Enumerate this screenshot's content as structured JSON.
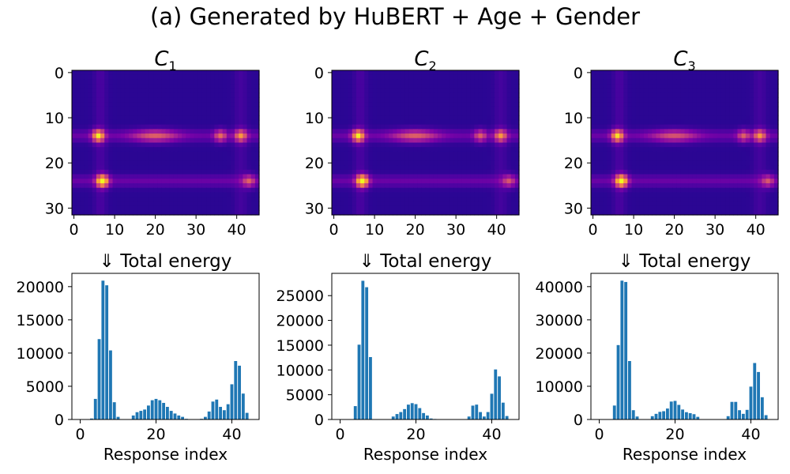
{
  "figure": {
    "title": "(a) Generated by HuBERT + Age + Gender"
  },
  "chart_data": [
    {
      "type": "heatmap",
      "title": "C",
      "title_subscript": "1",
      "colormap": "plasma",
      "xticks": [
        "0",
        "10",
        "20",
        "30",
        "40"
      ],
      "yticks": [
        "0",
        "10",
        "20",
        "30"
      ],
      "xlim": [
        -0.5,
        45.5
      ],
      "ylim": [
        31.5,
        -0.5
      ],
      "bright_rows": [
        14,
        24
      ],
      "hotspots": [
        {
          "x": 6,
          "y": 14,
          "intensity": 0.85
        },
        {
          "x": 7,
          "y": 24,
          "intensity": 1.0
        },
        {
          "x": 20,
          "y": 14,
          "intensity": 0.45
        },
        {
          "x": 36,
          "y": 14,
          "intensity": 0.5
        },
        {
          "x": 41,
          "y": 14,
          "intensity": 0.6
        },
        {
          "x": 43,
          "y": 24,
          "intensity": 0.45
        }
      ]
    },
    {
      "type": "heatmap",
      "title": "C",
      "title_subscript": "2",
      "colormap": "plasma",
      "xticks": [
        "0",
        "10",
        "20",
        "30",
        "40"
      ],
      "yticks": [
        "0",
        "10",
        "20",
        "30"
      ],
      "xlim": [
        -0.5,
        45.5
      ],
      "ylim": [
        31.5,
        -0.5
      ],
      "bright_rows": [
        14,
        24
      ],
      "hotspots": [
        {
          "x": 6,
          "y": 14,
          "intensity": 0.85
        },
        {
          "x": 7,
          "y": 24,
          "intensity": 1.0
        },
        {
          "x": 20,
          "y": 14,
          "intensity": 0.45
        },
        {
          "x": 36,
          "y": 14,
          "intensity": 0.45
        },
        {
          "x": 41,
          "y": 14,
          "intensity": 0.6
        },
        {
          "x": 43,
          "y": 24,
          "intensity": 0.4
        }
      ]
    },
    {
      "type": "heatmap",
      "title": "C",
      "title_subscript": "3",
      "colormap": "plasma",
      "xticks": [
        "0",
        "10",
        "20",
        "30",
        "40"
      ],
      "yticks": [
        "0",
        "10",
        "20",
        "30"
      ],
      "xlim": [
        -0.5,
        45.5
      ],
      "ylim": [
        31.5,
        -0.5
      ],
      "bright_rows": [
        14,
        24
      ],
      "hotspots": [
        {
          "x": 6,
          "y": 14,
          "intensity": 0.8
        },
        {
          "x": 7,
          "y": 24,
          "intensity": 1.0
        },
        {
          "x": 20,
          "y": 14,
          "intensity": 0.4
        },
        {
          "x": 37,
          "y": 14,
          "intensity": 0.45
        },
        {
          "x": 41,
          "y": 14,
          "intensity": 0.6
        },
        {
          "x": 43,
          "y": 24,
          "intensity": 0.4
        }
      ]
    },
    {
      "type": "bar",
      "title": "⇓  Total energy",
      "xlabel": "Response index",
      "ylabel": "",
      "color": "#1f77b4",
      "xlim": [
        -2.2,
        47.2
      ],
      "ylim": [
        0,
        22000
      ],
      "xticks": [
        0,
        20,
        40
      ],
      "yticks": [
        0,
        5000,
        10000,
        15000,
        20000
      ],
      "x": [
        0,
        1,
        2,
        3,
        4,
        5,
        6,
        7,
        8,
        9,
        10,
        11,
        12,
        13,
        14,
        15,
        16,
        17,
        18,
        19,
        20,
        21,
        22,
        23,
        24,
        25,
        26,
        27,
        28,
        29,
        30,
        31,
        32,
        33,
        34,
        35,
        36,
        37,
        38,
        39,
        40,
        41,
        42,
        43,
        44
      ],
      "values": [
        0,
        0,
        30,
        150,
        3100,
        12100,
        20900,
        20200,
        10400,
        2600,
        400,
        0,
        0,
        0,
        600,
        1100,
        1300,
        1500,
        2100,
        2900,
        3100,
        2900,
        2500,
        1900,
        1300,
        900,
        600,
        400,
        100,
        0,
        0,
        0,
        100,
        400,
        1200,
        2700,
        3000,
        1900,
        1400,
        2300,
        5300,
        8800,
        8100,
        3900,
        1000
      ]
    },
    {
      "type": "bar",
      "title": "⇓  Total energy",
      "xlabel": "Response index",
      "ylabel": "",
      "color": "#1f77b4",
      "xlim": [
        -2.2,
        47.2
      ],
      "ylim": [
        0,
        29500
      ],
      "xticks": [
        0,
        20,
        40
      ],
      "yticks": [
        0,
        5000,
        10000,
        15000,
        20000,
        25000
      ],
      "x": [
        0,
        1,
        2,
        3,
        4,
        5,
        6,
        7,
        8,
        9,
        10,
        11,
        12,
        13,
        14,
        15,
        16,
        17,
        18,
        19,
        20,
        21,
        22,
        23,
        24,
        25,
        26,
        27,
        28,
        29,
        30,
        31,
        32,
        33,
        34,
        35,
        36,
        37,
        38,
        39,
        40,
        41,
        42,
        43,
        44
      ],
      "values": [
        0,
        0,
        0,
        0,
        2700,
        15100,
        28000,
        26700,
        12600,
        0,
        0,
        0,
        0,
        0,
        600,
        1100,
        1500,
        2100,
        3000,
        3300,
        3100,
        2300,
        1300,
        800,
        200,
        100,
        0,
        0,
        0,
        0,
        0,
        0,
        0,
        0,
        600,
        2800,
        3000,
        1500,
        600,
        1500,
        5200,
        10100,
        8700,
        3400,
        700
      ]
    },
    {
      "type": "bar",
      "title": "⇓  Total energy",
      "xlabel": "Response index",
      "ylabel": "",
      "color": "#1f77b4",
      "xlim": [
        -2.2,
        47.2
      ],
      "ylim": [
        0,
        44000
      ],
      "xticks": [
        0,
        20,
        40
      ],
      "yticks": [
        0,
        10000,
        20000,
        30000,
        40000
      ],
      "x": [
        0,
        1,
        2,
        3,
        4,
        5,
        6,
        7,
        8,
        9,
        10,
        11,
        12,
        13,
        14,
        15,
        16,
        17,
        18,
        19,
        20,
        21,
        22,
        23,
        24,
        25,
        26,
        27,
        28,
        29,
        30,
        31,
        32,
        33,
        34,
        35,
        36,
        37,
        38,
        39,
        40,
        41,
        42,
        43,
        44
      ],
      "values": [
        0,
        0,
        0,
        0,
        4200,
        22400,
        41800,
        41400,
        17600,
        2800,
        900,
        0,
        0,
        0,
        1000,
        1700,
        2300,
        2500,
        3300,
        5400,
        5600,
        4400,
        3000,
        2200,
        1900,
        1600,
        800,
        0,
        0,
        0,
        0,
        0,
        0,
        0,
        1000,
        5300,
        5300,
        2800,
        1700,
        2900,
        9900,
        17000,
        14300,
        6700,
        1300
      ]
    }
  ]
}
